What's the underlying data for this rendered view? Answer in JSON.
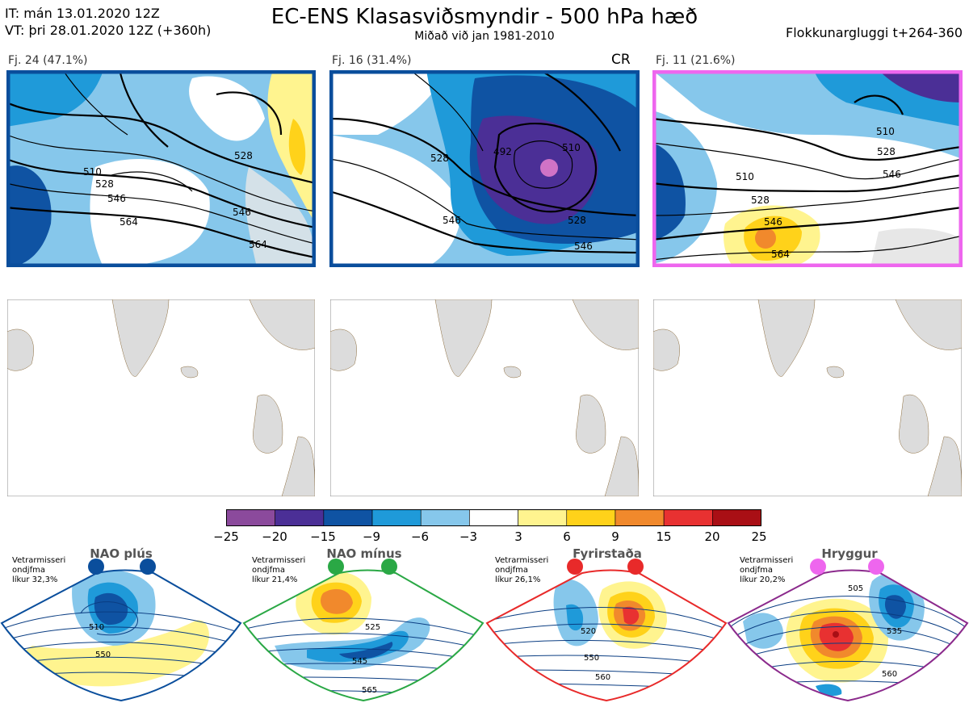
{
  "header": {
    "it_line": "IT: mán 13.01.2020 12Z",
    "vt_line": "VT: þri 28.01.2020 12Z  (+360h)",
    "title": "EC-ENS Klasasviðsmyndir - 500 hPa hæð",
    "subtitle": "Miðað við jan 1981-2010",
    "window": "Flokkunargluggi t+264-360"
  },
  "clusters": [
    {
      "label": "Fj. 24 (47.1%)",
      "border": "#0a4e9c",
      "tag": "",
      "contours": [
        "510",
        "528",
        "546",
        "564",
        "546",
        "528",
        "564"
      ]
    },
    {
      "label": "Fj. 16 (31.4%)",
      "border": "#0a4e9c",
      "tag": "CR",
      "contours": [
        "528",
        "492",
        "510",
        "528",
        "546",
        "546"
      ]
    },
    {
      "label": "Fj. 11 (21.6%)",
      "border": "#ee66ee",
      "tag": "",
      "contours": [
        "510",
        "528",
        "510",
        "528",
        "546",
        "546",
        "564"
      ]
    }
  ],
  "colorbar": {
    "colors": [
      "#8b4a9c",
      "#4b2f96",
      "#0f53a3",
      "#1f9ad9",
      "#86c7eb",
      "#ffffff",
      "#fff48f",
      "#ffd21a",
      "#f1892c",
      "#e83131",
      "#a90f15"
    ],
    "ticks": [
      "−25",
      "−20",
      "−15",
      "−9",
      "−6",
      "−3",
      "3",
      "6",
      "9",
      "15",
      "20",
      "25"
    ]
  },
  "regimes": [
    {
      "name": "NAO plús",
      "stat_lines": [
        "Vetrarmisseri",
        "ondjfma",
        "líkur 32,3%"
      ],
      "color": "#0a4e9c",
      "labels": [
        "510",
        "550"
      ]
    },
    {
      "name": "NAO mínus",
      "stat_lines": [
        "Vetrarmisseri",
        "ondjfma",
        "líkur 21,4%"
      ],
      "color": "#2aa845",
      "labels": [
        "525",
        "545",
        "565"
      ]
    },
    {
      "name": "Fyrirstaða",
      "stat_lines": [
        "Vetrarmisseri",
        "ondjfma",
        "líkur 26,1%"
      ],
      "color": "#e82a2a",
      "labels": [
        "520",
        "550",
        "560"
      ]
    },
    {
      "name": "Hryggur",
      "stat_lines": [
        "Vetrarmisseri",
        "ondjfma",
        "líkur 20,2%"
      ],
      "color": "#ee66ee",
      "labels": [
        "505",
        "535",
        "560"
      ]
    }
  ]
}
